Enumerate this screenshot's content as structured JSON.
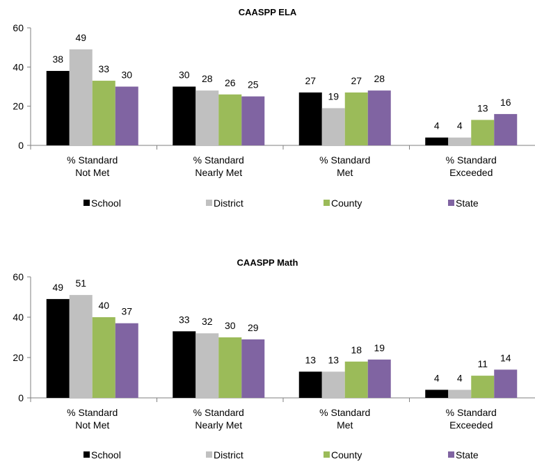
{
  "chart_data": [
    {
      "type": "bar",
      "title": "CAASPP ELA",
      "categories": [
        "% Standard\nNot Met",
        "% Standard\nNearly Met",
        "% Standard\nMet",
        "% Standard\nExceeded"
      ],
      "series": [
        {
          "name": "School",
          "color": "#000000",
          "values": [
            38,
            30,
            27,
            4
          ]
        },
        {
          "name": "District",
          "color": "#C0C0C0",
          "values": [
            49,
            28,
            19,
            4
          ]
        },
        {
          "name": "County",
          "color": "#9BBB59",
          "values": [
            33,
            26,
            27,
            13
          ]
        },
        {
          "name": "State",
          "color": "#8064A2",
          "values": [
            30,
            25,
            28,
            16
          ]
        }
      ],
      "ylim": [
        0,
        60
      ],
      "yticks": [
        0,
        20,
        40,
        60
      ],
      "grid": false,
      "legend": "bottom"
    },
    {
      "type": "bar",
      "title": "CAASPP Math",
      "categories": [
        "% Standard\nNot Met",
        "% Standard\nNearly Met",
        "% Standard\nMet",
        "% Standard\nExceeded"
      ],
      "series": [
        {
          "name": "School",
          "color": "#000000",
          "values": [
            49,
            33,
            13,
            4
          ]
        },
        {
          "name": "District",
          "color": "#C0C0C0",
          "values": [
            51,
            32,
            13,
            4
          ]
        },
        {
          "name": "County",
          "color": "#9BBB59",
          "values": [
            40,
            30,
            18,
            11
          ]
        },
        {
          "name": "State",
          "color": "#8064A2",
          "values": [
            37,
            29,
            19,
            14
          ]
        }
      ],
      "ylim": [
        0,
        60
      ],
      "yticks": [
        0,
        20,
        40,
        60
      ],
      "grid": false,
      "legend": "bottom"
    }
  ]
}
